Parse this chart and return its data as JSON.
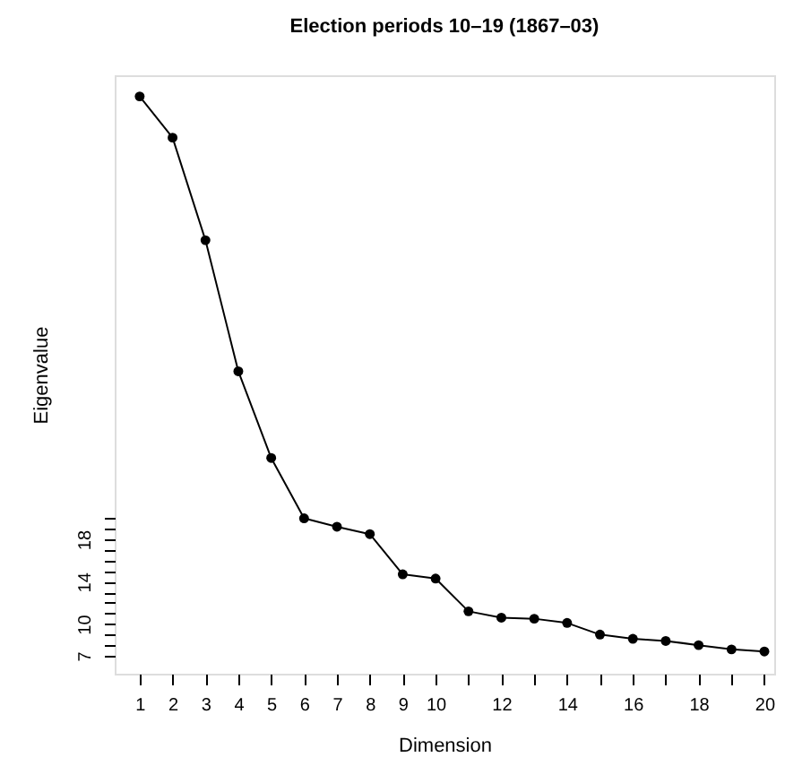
{
  "chart_data": {
    "type": "line",
    "title": "Election periods 10–19 (1867–03)",
    "xlabel": "Dimension",
    "ylabel": "Eigenvalue",
    "x": [
      1,
      2,
      3,
      4,
      5,
      6,
      7,
      8,
      9,
      10,
      11,
      12,
      13,
      14,
      15,
      16,
      17,
      18,
      19,
      20
    ],
    "series": [
      {
        "color": "#000000",
        "values": [
          59.9,
          56.0,
          46.3,
          33.9,
          25.7,
          20.0,
          19.2,
          18.5,
          14.7,
          14.3,
          11.2,
          10.6,
          10.5,
          10.1,
          9.0,
          8.6,
          8.4,
          8.0,
          7.6,
          7.4
        ]
      }
    ],
    "xlim": [
      0.24,
      20.3
    ],
    "ylim": [
      5.3,
      61.9
    ],
    "xticks": [
      1,
      2,
      3,
      4,
      5,
      6,
      7,
      8,
      9,
      10,
      {
        "value": 11,
        "label": null
      },
      12,
      {
        "value": 13,
        "label": null
      },
      14,
      {
        "value": 15,
        "label": null
      },
      16,
      {
        "value": 17,
        "label": null
      },
      18,
      {
        "value": 19,
        "label": null
      },
      20
    ],
    "yticks": [
      7,
      {
        "value": 8,
        "label": null
      },
      {
        "value": 9,
        "label": null
      },
      10,
      {
        "value": 11,
        "label": null
      },
      {
        "value": 12,
        "label": null
      },
      {
        "value": 13,
        "label": null
      },
      14,
      {
        "value": 15,
        "label": null
      },
      {
        "value": 16,
        "label": null
      },
      {
        "value": 17,
        "label": null
      },
      18,
      {
        "value": 19,
        "label": null
      },
      {
        "value": 20,
        "label": null
      }
    ],
    "marker": "circle",
    "line_style": "solid",
    "grid": false
  }
}
